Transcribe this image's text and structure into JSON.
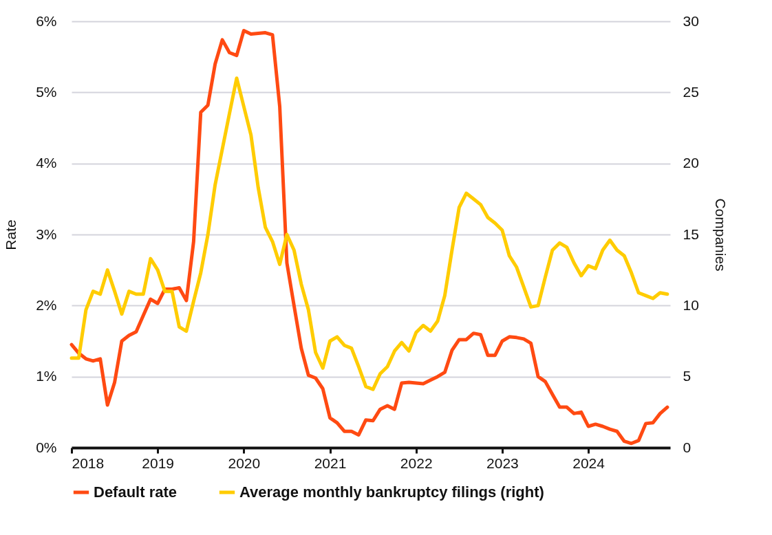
{
  "chart_data": {
    "type": "line",
    "xlim": [
      2018,
      2024.95
    ],
    "xticks": [
      2018,
      2019,
      2020,
      2021,
      2022,
      2023,
      2024
    ],
    "ylabel": "Rate",
    "y2label": "Companies",
    "ylim": [
      0,
      6
    ],
    "yticks": [
      {
        "value": 0,
        "label": "0%"
      },
      {
        "value": 1,
        "label": "1%"
      },
      {
        "value": 2,
        "label": "2%"
      },
      {
        "value": 3,
        "label": "3%"
      },
      {
        "value": 4,
        "label": "4%"
      },
      {
        "value": 5,
        "label": "5%"
      },
      {
        "value": 6,
        "label": "6%"
      }
    ],
    "y2lim": [
      0,
      30
    ],
    "y2ticks": [
      0,
      5,
      10,
      15,
      20,
      25,
      30
    ],
    "grid": "y",
    "legend": "bottom",
    "line_style": "solid",
    "marker": "none",
    "x": [
      2018.0,
      2018.083,
      2018.167,
      2018.25,
      2018.333,
      2018.417,
      2018.5,
      2018.583,
      2018.667,
      2018.75,
      2018.833,
      2018.917,
      2019.0,
      2019.083,
      2019.167,
      2019.25,
      2019.333,
      2019.417,
      2019.5,
      2019.583,
      2019.667,
      2019.75,
      2019.833,
      2019.917,
      2020.0,
      2020.083,
      2020.167,
      2020.25,
      2020.333,
      2020.417,
      2020.5,
      2020.583,
      2020.667,
      2020.75,
      2020.833,
      2020.917,
      2021.0,
      2021.083,
      2021.167,
      2021.25,
      2021.333,
      2021.417,
      2021.5,
      2021.583,
      2021.667,
      2021.75,
      2021.833,
      2021.917,
      2022.0,
      2022.083,
      2022.167,
      2022.25,
      2022.333,
      2022.417,
      2022.5,
      2022.583,
      2022.667,
      2022.75,
      2022.833,
      2022.917,
      2023.0,
      2023.083,
      2023.167,
      2023.25,
      2023.333,
      2023.417,
      2023.5,
      2023.583,
      2023.667,
      2023.75,
      2023.833,
      2023.917,
      2024.0,
      2024.083,
      2024.167,
      2024.25,
      2024.333,
      2024.417,
      2024.5,
      2024.583,
      2024.667,
      2024.75,
      2024.833,
      2024.917
    ],
    "series": [
      {
        "name": "Default rate",
        "color": "#ff4a12",
        "values": [
          1.45,
          1.33,
          1.25,
          1.22,
          1.25,
          0.6,
          0.92,
          1.5,
          1.58,
          1.63,
          1.86,
          2.09,
          2.03,
          2.23,
          2.23,
          2.25,
          2.07,
          2.9,
          4.72,
          4.82,
          5.4,
          5.74,
          5.56,
          5.52,
          5.87,
          5.82,
          5.83,
          5.84,
          5.81,
          4.8,
          2.6,
          2.0,
          1.4,
          1.02,
          0.98,
          0.83,
          0.42,
          0.35,
          0.23,
          0.23,
          0.18,
          0.39,
          0.38,
          0.54,
          0.59,
          0.54,
          0.91,
          0.92,
          0.91,
          0.9,
          0.95,
          1.0,
          1.06,
          1.37,
          1.52,
          1.52,
          1.61,
          1.59,
          1.3,
          1.3,
          1.5,
          1.56,
          1.55,
          1.53,
          1.47,
          1.0,
          0.93,
          0.75,
          0.57,
          0.57,
          0.48,
          0.5,
          0.3,
          0.33,
          0.3,
          0.26,
          0.23,
          0.09,
          0.06,
          0.1,
          0.34,
          0.35,
          0.48,
          0.57
        ]
      },
      {
        "name": "Average monthly bankruptcy filings (right)",
        "color": "#ffcc00",
        "axis": "y2",
        "values": [
          6.3,
          6.3,
          9.7,
          11.0,
          10.8,
          12.5,
          11.0,
          9.4,
          11.0,
          10.8,
          10.8,
          13.3,
          12.5,
          11.0,
          11.0,
          8.5,
          8.2,
          10.3,
          12.3,
          15.0,
          18.5,
          21.0,
          23.5,
          26.0,
          24.0,
          22.0,
          18.3,
          15.5,
          14.5,
          12.9,
          15.0,
          13.9,
          11.5,
          9.7,
          6.7,
          5.6,
          7.5,
          7.8,
          7.2,
          7.0,
          5.7,
          4.3,
          4.1,
          5.2,
          5.7,
          6.8,
          7.4,
          6.8,
          8.1,
          8.6,
          8.2,
          8.9,
          10.7,
          13.9,
          16.9,
          17.9,
          17.5,
          17.1,
          16.2,
          15.8,
          15.3,
          13.5,
          12.7,
          11.3,
          9.9,
          10.0,
          12.0,
          13.9,
          14.4,
          14.1,
          13.0,
          12.1,
          12.8,
          12.6,
          13.9,
          14.6,
          13.9,
          13.5,
          12.3,
          10.9,
          10.7,
          10.5,
          10.9,
          10.8
        ]
      }
    ]
  }
}
